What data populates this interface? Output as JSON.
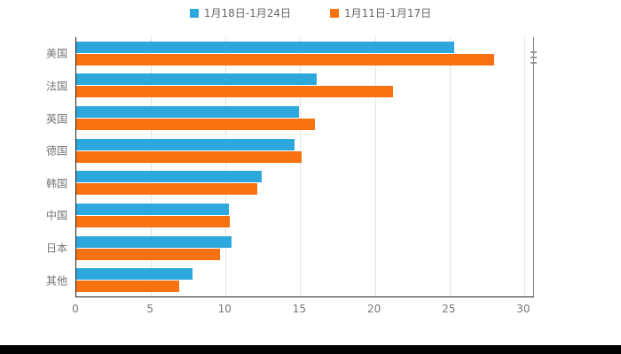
{
  "legend": {
    "items": [
      {
        "label": "1月18日-1月24日",
        "color": "#2da8dc"
      },
      {
        "label": "1月11日-1月17日",
        "color": "#f87211"
      }
    ]
  },
  "colors": {
    "blue_series": "#2da8dc",
    "orange_series": "#f87211",
    "axis_line": "#222222",
    "grid_line": "#e4e4e4",
    "label_text": "#757575"
  },
  "chart_data": {
    "type": "bar",
    "orientation": "horizontal",
    "title": "",
    "xlabel": "",
    "ylabel": "",
    "categories": [
      "美国",
      "法国",
      "英国",
      "德国",
      "韩国",
      "中国",
      "日本",
      "其他"
    ],
    "series": [
      {
        "name": "1月18日-1月24日",
        "color": "#2da8dc",
        "values": [
          25.3,
          16.1,
          14.9,
          14.6,
          12.4,
          10.2,
          10.4,
          7.8
        ]
      },
      {
        "name": "1月11日-1月17日",
        "color": "#f87211",
        "values": [
          28.0,
          21.2,
          16.0,
          15.1,
          12.1,
          10.3,
          9.6,
          6.9
        ]
      }
    ],
    "xlim": [
      0,
      30.6
    ],
    "xticks": [
      0,
      5,
      10,
      15,
      20,
      25,
      30
    ],
    "grid": true,
    "legend_position": "top"
  }
}
